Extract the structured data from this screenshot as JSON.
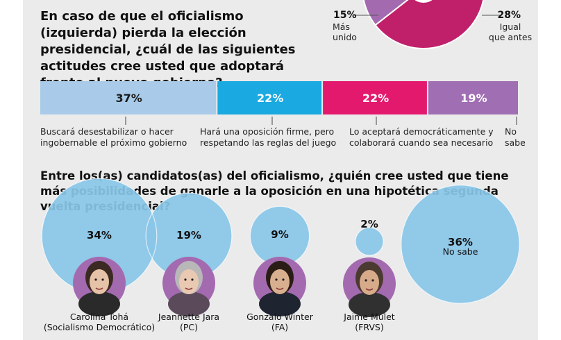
{
  "question1": {
    "title": "En caso de que el oficialismo (izquierda) pierda la elección presidencial, ¿cuál de las siguientes actitudes cree usted que adoptará frente al nuevo gobierno?"
  },
  "question2": {
    "title": "Entre los(as) candidatos(as) del oficialismo, ¿quién cree usted que tiene más posibilidades de ganarle a la oposición en una hipotética segunda vuelta presidencial?"
  },
  "chart_data": [
    {
      "type": "pie",
      "slices": [
        {
          "value": 15,
          "pct_label": "15%",
          "label_lines": [
            "Más",
            "unido"
          ],
          "color": "#a46ab0"
        },
        {
          "value": 28,
          "pct_label": "28%",
          "label_lines": [
            "Igual",
            "que antes"
          ],
          "color": "#9a0a3e"
        },
        {
          "value": 57,
          "pct_label": "",
          "label_lines": [],
          "color": "#c0206a"
        }
      ]
    },
    {
      "type": "bar",
      "orientation": "stacked-horizontal",
      "segments": [
        {
          "value": 37,
          "label": "37%",
          "color": "#a9cbe9",
          "text_color": "#1a1a1a",
          "description": [
            "Buscará desestabilizar o hacer",
            "ingobernable el próximo gobierno"
          ]
        },
        {
          "value": 22,
          "label": "22%",
          "color": "#1aa9e0",
          "text_color": "#ffffff",
          "description": [
            "Hará una oposición firme, pero",
            "respetando las reglas del juego"
          ]
        },
        {
          "value": 22,
          "label": "22%",
          "color": "#e3196e",
          "text_color": "#ffffff",
          "description": [
            "Lo aceptará democráticamente y",
            "colaborará cuando sea necesario"
          ]
        },
        {
          "value": 19,
          "label": "19%",
          "color": "#a06fb3",
          "text_color": "#ffffff",
          "description": [
            "No",
            "sabe"
          ]
        }
      ]
    },
    {
      "type": "bubble",
      "color": "#89c5e7",
      "items": [
        {
          "value": 34,
          "label": "34%",
          "name": [
            "Carolina Tohá",
            "(Socialismo Democrático)"
          ]
        },
        {
          "value": 19,
          "label": "19%",
          "name": [
            "Jeannette Jara",
            "(PC)"
          ]
        },
        {
          "value": 9,
          "label": "9%",
          "name": [
            "Gonzalo Winter",
            "(FA)"
          ]
        },
        {
          "value": 2,
          "label": "2%",
          "name": [
            "Jaime Mulet",
            "(FRVS)"
          ]
        },
        {
          "value": 36,
          "label": "36%",
          "name": [
            "No sabe"
          ]
        }
      ]
    }
  ]
}
